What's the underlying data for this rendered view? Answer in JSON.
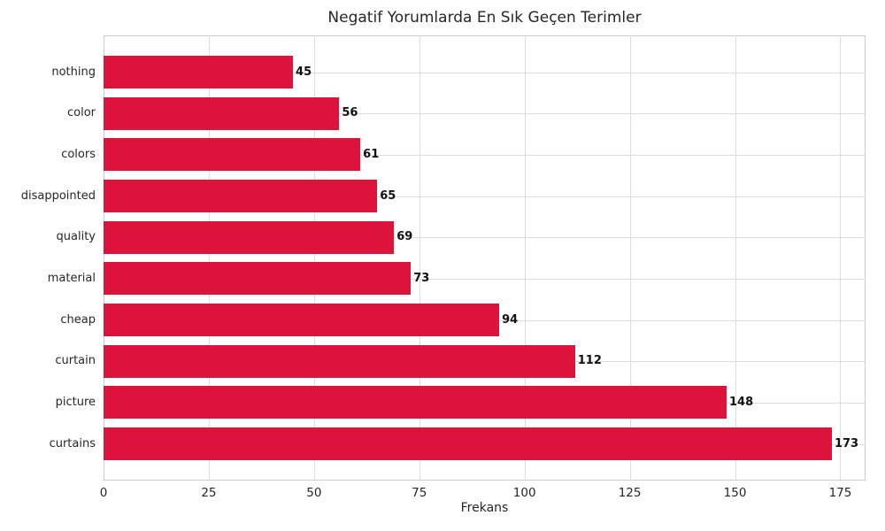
{
  "chart_data": {
    "type": "bar",
    "orientation": "horizontal",
    "title": "Negatif Yorumlarda En Sık Geçen Terimler",
    "xlabel": "Frekans",
    "ylabel": "",
    "categories": [
      "nothing",
      "color",
      "colors",
      "disappointed",
      "quality",
      "material",
      "cheap",
      "curtain",
      "picture",
      "curtains"
    ],
    "values": [
      45,
      56,
      61,
      65,
      69,
      73,
      94,
      112,
      148,
      173
    ],
    "value_labels": [
      "45",
      "56",
      "61",
      "65",
      "69",
      "73",
      "94",
      "112",
      "148",
      "173"
    ],
    "xticks": [
      0,
      25,
      50,
      75,
      100,
      125,
      150,
      175
    ],
    "xtick_labels": [
      "0",
      "25",
      "50",
      "75",
      "100",
      "125",
      "150",
      "175"
    ],
    "xlim": [
      0,
      181
    ],
    "grid": true,
    "legend": "none",
    "colors": {
      "bar": "#DC143C",
      "grid": "#dcdcdc",
      "spine": "#cccccc",
      "text": "#262626",
      "value_label": "#111111",
      "background": "#ffffff"
    }
  }
}
